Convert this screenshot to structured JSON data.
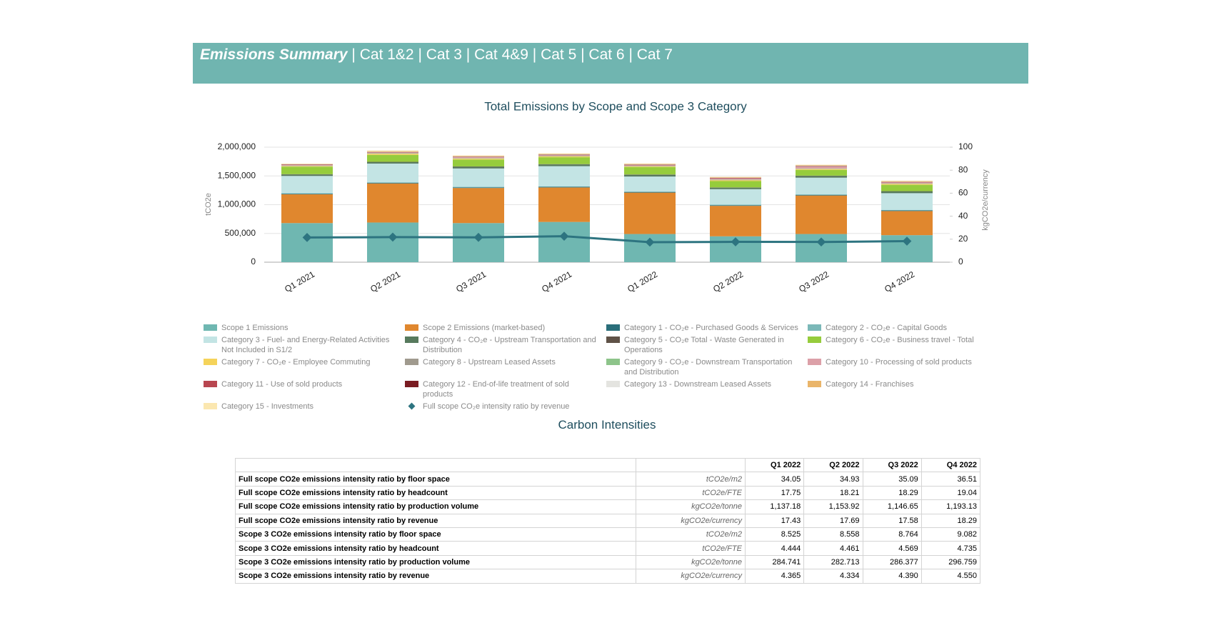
{
  "header": {
    "title": "Emissions Summary",
    "tabs": [
      "Cat 1&2",
      "Cat 3",
      "Cat 4&9",
      "Cat 5",
      "Cat 6",
      "Cat 7"
    ]
  },
  "chart_data": {
    "type": "bar",
    "stacked": true,
    "title": "Total Emissions by Scope and Scope 3 Category",
    "y_label": "tCO2e",
    "y2_label": "kgCO2e/currency",
    "categories": [
      "Q1 2021",
      "Q2 2021",
      "Q3 2021",
      "Q4 2021",
      "Q1 2022",
      "Q2 2022",
      "Q3 2022",
      "Q4 2022"
    ],
    "ylim": [
      0,
      2000000
    ],
    "yticks": [
      0,
      {
        "value": 500000,
        "label": "500,000"
      },
      {
        "value": 1000000,
        "label": "1,000,000"
      },
      {
        "value": 1500000,
        "label": "1,500,000"
      },
      {
        "value": 2000000,
        "label": "2,000,000"
      }
    ],
    "y2lim": [
      0,
      100
    ],
    "y2ticks": [
      0,
      20,
      40,
      60,
      80,
      100
    ],
    "grid": true,
    "series": [
      {
        "name": "Scope 1 Emissions",
        "color": "#6fb7b1",
        "values": [
          680000,
          690000,
          680000,
          700000,
          490000,
          450000,
          490000,
          470000
        ]
      },
      {
        "name": "Scope 2 Emissions (market-based)",
        "color": "#e0872e",
        "values": [
          500000,
          680000,
          610000,
          600000,
          720000,
          530000,
          670000,
          420000
        ]
      },
      {
        "name": "Category 1 - CO₂e - Purchased Goods & Services",
        "color": "#2a6e7a",
        "values": [
          10000,
          10000,
          10000,
          10000,
          10000,
          10000,
          10000,
          10000
        ]
      },
      {
        "name": "Category 2 - CO₂e - Capital Goods",
        "color": "#7bb8b8",
        "values": [
          10000,
          10000,
          10000,
          10000,
          10000,
          10000,
          10000,
          10000
        ]
      },
      {
        "name": "Category 3 - Fuel- and Energy-Related Activities Not Included in S1/2",
        "color": "#c3e4e4",
        "values": [
          300000,
          325000,
          320000,
          350000,
          260000,
          270000,
          290000,
          290000
        ]
      },
      {
        "name": "Category 4 - CO₂e - Upstream Transportation and Distribution",
        "color": "#577a5d",
        "values": [
          25000,
          25000,
          30000,
          30000,
          30000,
          25000,
          30000,
          30000
        ]
      },
      {
        "name": "Category 5 - CO₂e Total - Waste Generated in Operations",
        "color": "#5f5247",
        "values": [
          5000,
          5000,
          5000,
          5000,
          5000,
          5000,
          5000,
          5000
        ]
      },
      {
        "name": "Category 6 - CO₂e - Business travel - Total",
        "color": "#96cc3c",
        "values": [
          130000,
          120000,
          120000,
          120000,
          130000,
          110000,
          100000,
          110000
        ]
      },
      {
        "name": "Category 7 - CO₂e - Employee Commuting",
        "color": "#f5d35a",
        "values": [
          10000,
          20000,
          15000,
          15000,
          10000,
          15000,
          15000,
          15000
        ]
      },
      {
        "name": "Category 8 - Upstream Leased Assets",
        "color": "#a09a8e",
        "values": [
          5000,
          5000,
          5000,
          5000,
          5000,
          5000,
          5000,
          5000
        ]
      },
      {
        "name": "Category 9 - CO₂e - Downstream Transportation and Distribution",
        "color": "#8dc48a",
        "values": [
          5000,
          5000,
          5000,
          5000,
          5000,
          5000,
          5000,
          5000
        ]
      },
      {
        "name": "Category 10 - Processing of sold products",
        "color": "#dca0a8",
        "values": [
          10000,
          10000,
          15000,
          10000,
          10000,
          20000,
          30000,
          15000
        ]
      },
      {
        "name": "Category 11 - Use of sold products",
        "color": "#b84650",
        "values": [
          5000,
          5000,
          5000,
          5000,
          5000,
          5000,
          5000,
          5000
        ]
      },
      {
        "name": "Category 12 - End-of-life treatment of sold products",
        "color": "#7a1c22",
        "values": [
          5000,
          5000,
          5000,
          5000,
          5000,
          5000,
          5000,
          5000
        ]
      },
      {
        "name": "Category 13 - Downstream Leased Assets",
        "color": "#e4e4e0",
        "values": [
          5000,
          5000,
          5000,
          5000,
          5000,
          5000,
          10000,
          5000
        ]
      },
      {
        "name": "Category 14 - Franchises",
        "color": "#eab56a",
        "values": [
          5000,
          15000,
          10000,
          10000,
          10000,
          10000,
          10000,
          10000
        ]
      },
      {
        "name": "Category 15 - Investments",
        "color": "#fbe7b0",
        "values": [
          5000,
          5000,
          5000,
          5000,
          5000,
          5000,
          5000,
          5000
        ]
      },
      {
        "name": "Full scope CO₂e intensity ratio by revenue",
        "color": "#2d7480",
        "type": "line",
        "axis": "y2",
        "values": [
          21.5,
          21.8,
          21.6,
          22.6,
          17.43,
          17.69,
          17.58,
          18.29
        ]
      }
    ]
  },
  "table": {
    "title": "Carbon Intensities",
    "columns": [
      "Q1 2022",
      "Q2 2022",
      "Q3 2022",
      "Q4 2022"
    ],
    "rows": [
      {
        "label": "Full scope CO2e emissions intensity ratio by floor space",
        "unit": "tCO2e/m2",
        "values": [
          "34.05",
          "34.93",
          "35.09",
          "36.51"
        ]
      },
      {
        "label": "Full scope CO2e emissions intensity ratio by headcount",
        "unit": "tCO2e/FTE",
        "values": [
          "17.75",
          "18.21",
          "18.29",
          "19.04"
        ]
      },
      {
        "label": "Full scope CO2e emissions intensity ratio by production volume",
        "unit": "kgCO2e/tonne",
        "values": [
          "1,137.18",
          "1,153.92",
          "1,146.65",
          "1,193.13"
        ]
      },
      {
        "label": "Full scope CO2e emissions intensity ratio by revenue",
        "unit": "kgCO2e/currency",
        "values": [
          "17.43",
          "17.69",
          "17.58",
          "18.29"
        ]
      },
      {
        "label": "Scope 3 CO2e emissions intensity ratio by floor space",
        "unit": "tCO2e/m2",
        "values": [
          "8.525",
          "8.558",
          "8.764",
          "9.082"
        ]
      },
      {
        "label": "Scope 3 CO2e emissions intensity ratio by headcount",
        "unit": "tCO2e/FTE",
        "values": [
          "4.444",
          "4.461",
          "4.569",
          "4.735"
        ]
      },
      {
        "label": "Scope 3 CO2e emissions intensity ratio by production volume",
        "unit": "kgCO2e/tonne",
        "values": [
          "284.741",
          "282.713",
          "286.377",
          "296.759"
        ]
      },
      {
        "label": "Scope 3 CO2e emissions intensity ratio by revenue",
        "unit": "kgCO2e/currency",
        "values": [
          "4.365",
          "4.334",
          "4.390",
          "4.550"
        ]
      }
    ]
  }
}
